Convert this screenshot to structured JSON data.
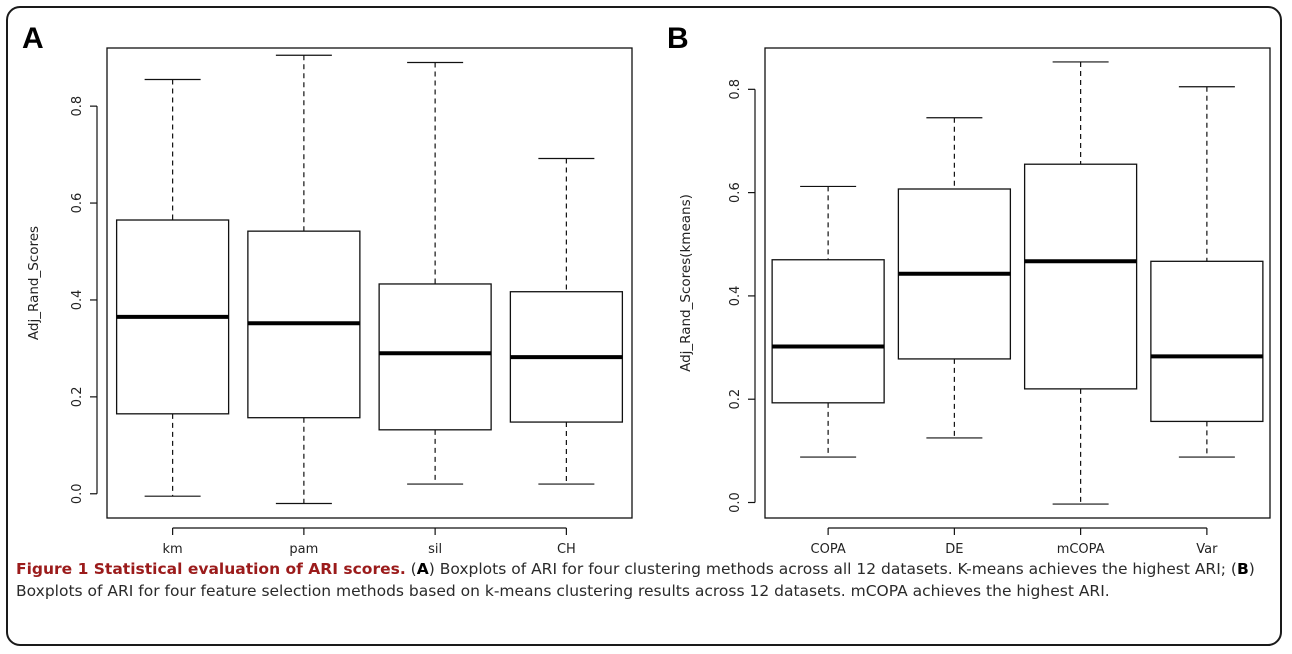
{
  "panels": {
    "a": {
      "letter": "A"
    },
    "b": {
      "letter": "B"
    }
  },
  "chart_data": [
    {
      "type": "boxplot",
      "panel": "A",
      "ylabel": "Adj_Rand_Scores",
      "xlabel": "",
      "ylim": [
        -0.05,
        0.92
      ],
      "yticks": [
        0.0,
        0.2,
        0.4,
        0.6,
        0.8
      ],
      "ytick_labels": [
        "0.0",
        "0.2",
        "0.4",
        "0.6",
        "0.8"
      ],
      "grid": false,
      "categories": [
        "km",
        "pam",
        "sil",
        "CH"
      ],
      "boxes": [
        {
          "min": -0.005,
          "q1": 0.165,
          "median": 0.365,
          "q3": 0.565,
          "max": 0.855
        },
        {
          "min": -0.02,
          "q1": 0.157,
          "median": 0.352,
          "q3": 0.542,
          "max": 0.905
        },
        {
          "min": 0.02,
          "q1": 0.132,
          "median": 0.29,
          "q3": 0.433,
          "max": 0.89
        },
        {
          "min": 0.02,
          "q1": 0.148,
          "median": 0.282,
          "q3": 0.417,
          "max": 0.692
        }
      ]
    },
    {
      "type": "boxplot",
      "panel": "B",
      "ylabel": "Adj_Rand_Scores(kmeans)",
      "xlabel": "",
      "ylim": [
        -0.03,
        0.88
      ],
      "yticks": [
        0.0,
        0.2,
        0.4,
        0.6,
        0.8
      ],
      "ytick_labels": [
        "0.0",
        "0.2",
        "0.4",
        "0.6",
        "0.8"
      ],
      "grid": false,
      "categories": [
        "COPA",
        "DE",
        "mCOPA",
        "Var"
      ],
      "boxes": [
        {
          "min": 0.088,
          "q1": 0.193,
          "median": 0.302,
          "q3": 0.47,
          "max": 0.612
        },
        {
          "min": 0.125,
          "q1": 0.278,
          "median": 0.443,
          "q3": 0.607,
          "max": 0.745
        },
        {
          "min": -0.003,
          "q1": 0.22,
          "median": 0.467,
          "q3": 0.655,
          "max": 0.853
        },
        {
          "min": 0.088,
          "q1": 0.157,
          "median": 0.283,
          "q3": 0.467,
          "max": 0.805
        }
      ]
    }
  ],
  "caption": {
    "title": "Figure 1 Statistical evaluation of ARI scores.",
    "part1_open": " (",
    "ref_a": "A",
    "part1": ") Boxplots of ARI for four clustering methods across all 12 datasets. K-means achieves the highest ARI; (",
    "ref_b": "B",
    "part2": ") Boxplots of ARI for four feature selection methods based on k-means clustering results across 12 datasets. mCOPA achieves the highest ARI."
  }
}
